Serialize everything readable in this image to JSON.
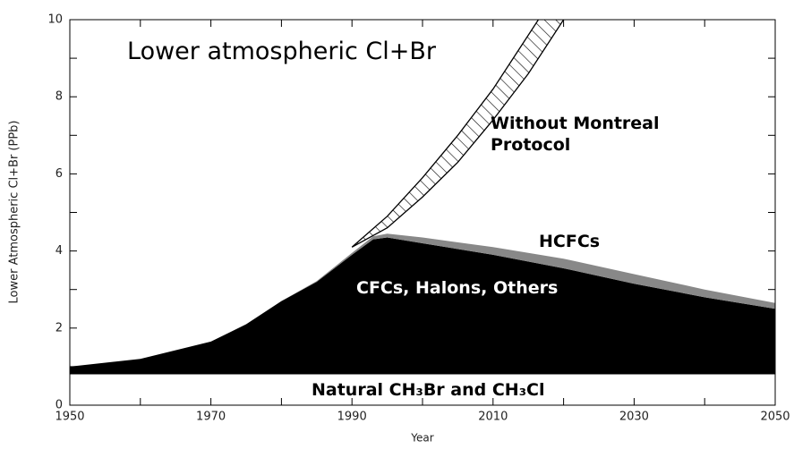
{
  "chart_data": {
    "type": "stacked_area",
    "title": "Lower atmospheric Cl+Br",
    "x_label": "Year",
    "y_label": "Lower Atmospheric Cl+Br (PPb)",
    "x": [
      1950,
      1960,
      1970,
      1975,
      1980,
      1985,
      1990,
      1993,
      1995,
      2000,
      2010,
      2020,
      2030,
      2040,
      2050
    ],
    "series": [
      {
        "name": "Natural CH₃Br and CH₃Cl",
        "color": "#ffffff",
        "values": [
          0.8,
          0.8,
          0.8,
          0.8,
          0.8,
          0.8,
          0.8,
          0.8,
          0.8,
          0.8,
          0.8,
          0.8,
          0.8,
          0.8,
          0.8
        ]
      },
      {
        "name": "CFCs, Halons, Others",
        "color": "#000000",
        "values": [
          0.2,
          0.4,
          0.85,
          1.3,
          1.9,
          2.4,
          3.1,
          3.5,
          3.55,
          3.4,
          3.1,
          2.75,
          2.35,
          2.0,
          1.7
        ]
      },
      {
        "name": "HCFCs",
        "color": "#888888",
        "values": [
          0,
          0,
          0,
          0,
          0,
          0.02,
          0.05,
          0.08,
          0.1,
          0.15,
          0.2,
          0.25,
          0.25,
          0.2,
          0.15
        ]
      }
    ],
    "without_protocol": {
      "name": "Without Montreal Protocol",
      "color": "#000000",
      "x": [
        1990,
        1995,
        2000,
        2005,
        2010,
        2015,
        2020
      ],
      "upper": [
        4.1,
        4.9,
        5.9,
        7.0,
        8.2,
        9.6,
        11.0
      ],
      "lower": [
        4.1,
        4.6,
        5.4,
        6.3,
        7.4,
        8.6,
        10.0
      ]
    },
    "xlim": [
      1950,
      2050
    ],
    "xticks": [
      1950,
      1970,
      1990,
      2010,
      2030,
      2050
    ],
    "xticks_minor": [
      1960,
      1980,
      2000,
      2020,
      2040
    ],
    "ylim": [
      0,
      10
    ],
    "yticks": [
      0,
      2,
      4,
      6,
      8,
      10
    ],
    "yticks_minor": [
      1,
      3,
      5,
      7,
      9
    ],
    "grid": false
  }
}
